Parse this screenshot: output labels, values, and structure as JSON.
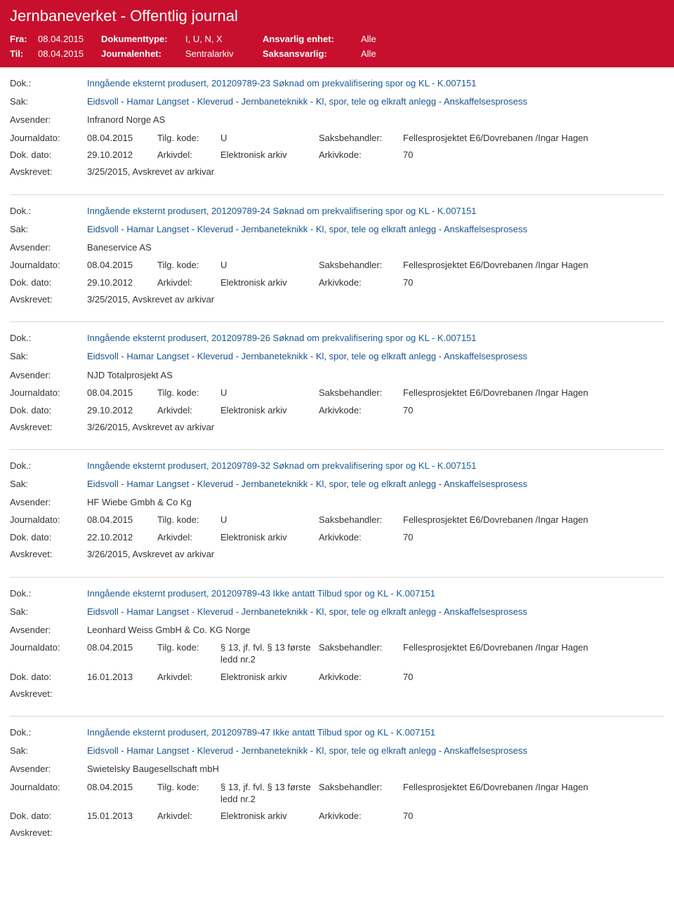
{
  "header": {
    "title": "Jernbaneverket - Offentlig journal",
    "fra_label": "Fra:",
    "fra_value": "08.04.2015",
    "til_label": "Til:",
    "til_value": "08.04.2015",
    "doktype_label": "Dokumenttype:",
    "doktype_value": "I, U, N, X",
    "journalenhet_label": "Journalenhet:",
    "journalenhet_value": "Sentralarkiv",
    "ansvarlig_label": "Ansvarlig enhet:",
    "ansvarlig_value": "Alle",
    "saksansvarlig_label": "Saksansvarlig:",
    "saksansvarlig_value": "Alle"
  },
  "labels": {
    "dok": "Dok.:",
    "sak": "Sak:",
    "avsender": "Avsender:",
    "journaldato": "Journaldato:",
    "tilgkode": "Tilg. kode:",
    "saksbehandler": "Saksbehandler:",
    "dokdato": "Dok. dato:",
    "arkivdel": "Arkivdel:",
    "arkivkode": "Arkivkode:",
    "avskrevet": "Avskrevet:"
  },
  "entries": [
    {
      "dok": "Inngående eksternt produsert, 201209789-23 Søknad om prekvalifisering spor og KL - K.007151",
      "sak": "Eidsvoll - Hamar Langset - Kleverud - Jernbaneteknikk - Kl, spor, tele og elkraft anlegg - Anskaffelsesprosess",
      "avsender": "Infranord Norge AS",
      "journaldato": "08.04.2015",
      "tilgkode": "U",
      "saksbehandler": "Fellesprosjektet E6/Dovrebanen /Ingar Hagen",
      "dokdato": "29.10.2012",
      "arkivdel": "Elektronisk arkiv",
      "arkivkode": "70",
      "avskrevet": "3/25/2015, Avskrevet av arkivar"
    },
    {
      "dok": "Inngående eksternt produsert, 201209789-24 Søknad om prekvalifisering spor og KL - K.007151",
      "sak": "Eidsvoll - Hamar Langset - Kleverud - Jernbaneteknikk - Kl, spor, tele og elkraft anlegg - Anskaffelsesprosess",
      "avsender": "Baneservice AS",
      "journaldato": "08.04.2015",
      "tilgkode": "U",
      "saksbehandler": "Fellesprosjektet E6/Dovrebanen /Ingar Hagen",
      "dokdato": "29.10.2012",
      "arkivdel": "Elektronisk arkiv",
      "arkivkode": "70",
      "avskrevet": "3/25/2015, Avskrevet av arkivar"
    },
    {
      "dok": "Inngående eksternt produsert, 201209789-26 Søknad om prekvalifisering spor og KL - K.007151",
      "sak": "Eidsvoll - Hamar Langset - Kleverud - Jernbaneteknikk - Kl, spor, tele og elkraft anlegg - Anskaffelsesprosess",
      "avsender": "NJD Totalprosjekt AS",
      "journaldato": "08.04.2015",
      "tilgkode": "U",
      "saksbehandler": "Fellesprosjektet E6/Dovrebanen /Ingar Hagen",
      "dokdato": "29.10.2012",
      "arkivdel": "Elektronisk arkiv",
      "arkivkode": "70",
      "avskrevet": "3/26/2015, Avskrevet av arkivar"
    },
    {
      "dok": "Inngående eksternt produsert, 201209789-32 Søknad om prekvalifisering spor og KL - K.007151",
      "sak": "Eidsvoll - Hamar Langset - Kleverud - Jernbaneteknikk - Kl, spor, tele og elkraft anlegg - Anskaffelsesprosess",
      "avsender": "HF Wiebe Gmbh & Co Kg",
      "journaldato": "08.04.2015",
      "tilgkode": "U",
      "saksbehandler": "Fellesprosjektet E6/Dovrebanen /Ingar Hagen",
      "dokdato": "22.10.2012",
      "arkivdel": "Elektronisk arkiv",
      "arkivkode": "70",
      "avskrevet": "3/26/2015, Avskrevet av arkivar"
    },
    {
      "dok": "Inngående eksternt produsert, 201209789-43 Ikke antatt Tilbud spor og KL - K.007151",
      "sak": "Eidsvoll - Hamar Langset - Kleverud - Jernbaneteknikk - Kl, spor, tele og elkraft anlegg - Anskaffelsesprosess",
      "avsender": "Leonhard Weiss GmbH & Co. KG Norge",
      "journaldato": "08.04.2015",
      "tilgkode": "§ 13, jf. fvl. § 13 første ledd nr.2",
      "saksbehandler": "Fellesprosjektet E6/Dovrebanen /Ingar Hagen",
      "dokdato": "16.01.2013",
      "arkivdel": "Elektronisk arkiv",
      "arkivkode": "70",
      "avskrevet": ""
    },
    {
      "dok": "Inngående eksternt produsert, 201209789-47 Ikke antatt Tilbud spor og KL - K.007151",
      "sak": "Eidsvoll - Hamar Langset - Kleverud - Jernbaneteknikk - Kl, spor, tele og elkraft anlegg - Anskaffelsesprosess",
      "avsender": "Swietelsky Baugesellschaft mbH",
      "journaldato": "08.04.2015",
      "tilgkode": "§ 13, jf. fvl. § 13 første ledd nr.2",
      "saksbehandler": "Fellesprosjektet E6/Dovrebanen /Ingar Hagen",
      "dokdato": "15.01.2013",
      "arkivdel": "Elektronisk arkiv",
      "arkivkode": "70",
      "avskrevet": ""
    }
  ]
}
